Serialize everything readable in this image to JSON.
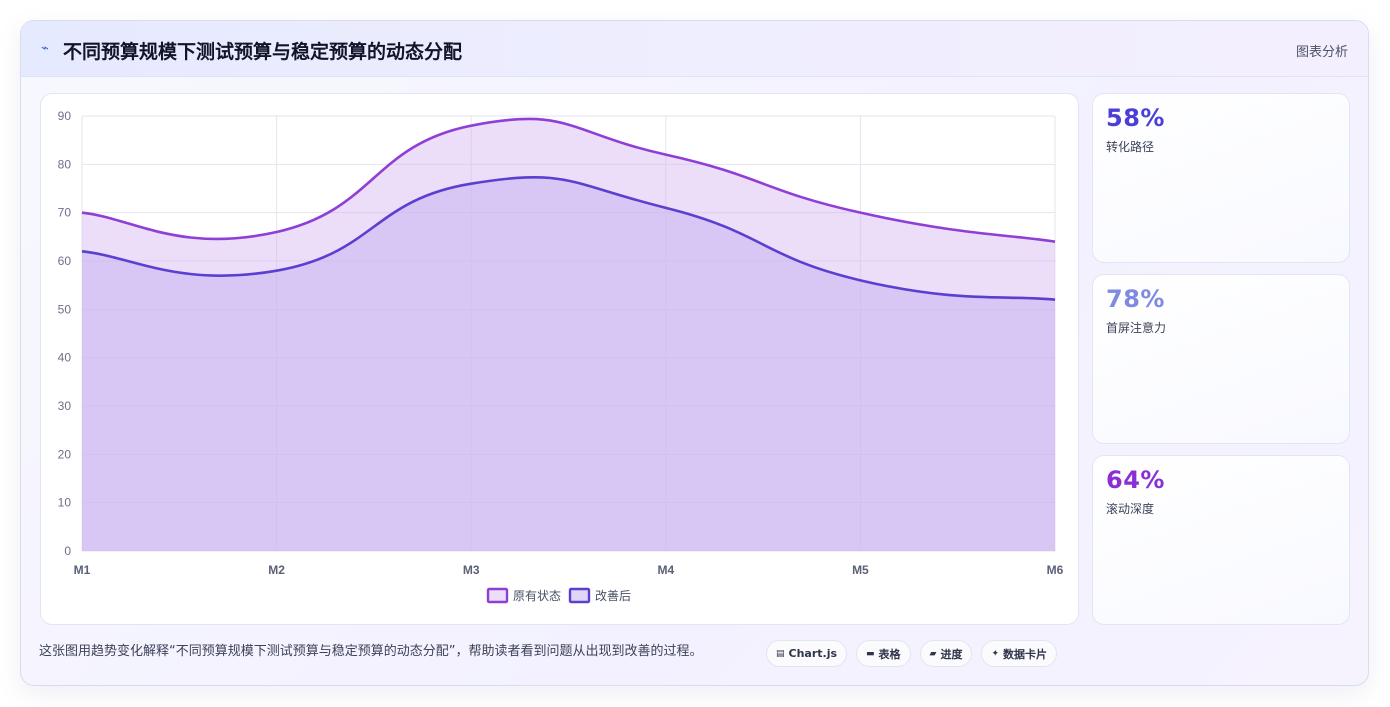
{
  "header": {
    "icon": "line-chart-icon",
    "title": "不同预算规模下测试预算与稳定预算的动态分配",
    "right_label": "图表分析"
  },
  "chart_data": {
    "type": "area",
    "categories": [
      "M1",
      "M2",
      "M3",
      "M4",
      "M5",
      "M6"
    ],
    "series": [
      {
        "name": "原有状态",
        "values": [
          70,
          66,
          88,
          82,
          70,
          64
        ],
        "color": "#8f3ed6",
        "fill": "rgba(213,180,240,0.45)"
      },
      {
        "name": "改善后",
        "values": [
          62,
          58,
          76,
          71,
          56,
          52
        ],
        "color": "#5a40d0",
        "fill": "rgba(200,180,240,0.55)"
      }
    ],
    "ylim": [
      0,
      90
    ],
    "yticks": [
      0,
      10,
      20,
      30,
      40,
      50,
      60,
      70,
      80,
      90
    ],
    "grid": true,
    "legend": "bottom",
    "title": "",
    "xlabel": "",
    "ylabel": ""
  },
  "kpis": [
    {
      "value": "58%",
      "label": "转化路径",
      "color": "#4b3fd8"
    },
    {
      "value": "78%",
      "label": "首屏注意力",
      "color": "#7f8be0"
    },
    {
      "value": "64%",
      "label": "滚动深度",
      "color": "#8a2fd6"
    }
  ],
  "footer": {
    "text": "这张图用趋势变化解释“不同预算规模下测试预算与稳定预算的动态分配”，帮助读者看到问题从出现到改善的过程。"
  },
  "tags": [
    {
      "icon": "chart-icon",
      "glyph": "▤",
      "label": "Chart.js"
    },
    {
      "icon": "table-icon",
      "glyph": "▬",
      "label": "表格"
    },
    {
      "icon": "progress-icon",
      "glyph": "▰",
      "label": "进度"
    },
    {
      "icon": "sparkle-icon",
      "glyph": "✦",
      "label": "数据卡片"
    }
  ]
}
